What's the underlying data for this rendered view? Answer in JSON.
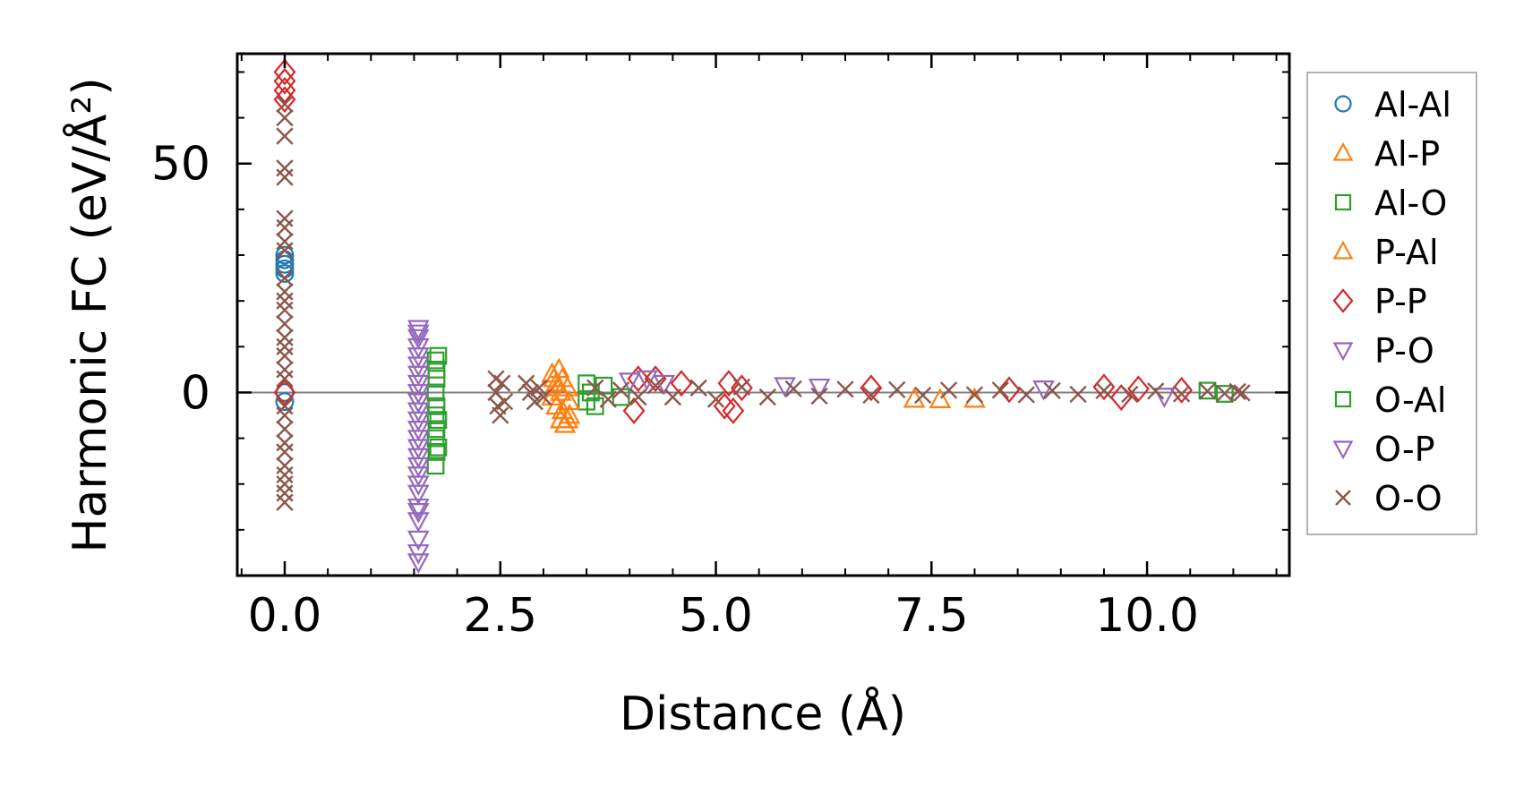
{
  "chart_data": {
    "type": "scatter",
    "title": "",
    "xlabel": "Distance (Å)",
    "ylabel": "Harmonic FC (eV/Å²)",
    "xlim": [
      -0.55,
      11.65
    ],
    "ylim": [
      -40,
      74
    ],
    "xticks": [
      0.0,
      2.5,
      5.0,
      7.5,
      10.0
    ],
    "xtick_labels": [
      "0.0",
      "2.5",
      "5.0",
      "7.5",
      "10.0"
    ],
    "yticks": [
      0,
      50
    ],
    "ytick_labels": [
      "0",
      "50"
    ],
    "zero_line": 0,
    "grid": false,
    "legend": "right, outside plot",
    "series": [
      {
        "name": "Al-Al",
        "marker": "circle",
        "color": "#1f77b4",
        "points": [
          [
            0,
            26
          ],
          [
            0,
            28
          ],
          [
            0,
            29
          ],
          [
            0,
            30
          ],
          [
            0,
            27
          ],
          [
            0,
            0
          ],
          [
            0,
            -2
          ]
        ]
      },
      {
        "name": "Al-P",
        "marker": "triangle-up",
        "color": "#ff7f0e",
        "points": [
          [
            3.1,
            4
          ],
          [
            3.12,
            3
          ],
          [
            3.15,
            2
          ],
          [
            3.18,
            1
          ],
          [
            3.1,
            -1
          ],
          [
            3.15,
            -3
          ],
          [
            3.2,
            -6
          ],
          [
            3.25,
            -7
          ],
          [
            3.3,
            -5
          ],
          [
            3.2,
            0
          ],
          [
            7.3,
            -1.5
          ],
          [
            7.6,
            -1.6
          ],
          [
            8.0,
            -1.5
          ]
        ]
      },
      {
        "name": "Al-O",
        "marker": "square",
        "color": "#2ca02c",
        "points": [
          [
            1.75,
            7
          ],
          [
            1.76,
            5
          ],
          [
            1.76,
            3
          ],
          [
            1.75,
            0
          ],
          [
            1.76,
            -3
          ],
          [
            1.75,
            -5
          ],
          [
            1.76,
            -8
          ],
          [
            1.75,
            -10
          ],
          [
            1.76,
            -13
          ],
          [
            1.75,
            -16
          ],
          [
            3.5,
            2
          ],
          [
            3.55,
            0
          ],
          [
            3.5,
            -2
          ],
          [
            3.6,
            -3
          ]
        ]
      },
      {
        "name": "P-Al",
        "marker": "triangle-up",
        "color": "#ff7f0e",
        "points": [
          [
            3.18,
            5
          ],
          [
            3.22,
            3
          ],
          [
            3.28,
            1
          ],
          [
            3.3,
            -2
          ],
          [
            3.22,
            -4
          ],
          [
            3.28,
            -6
          ]
        ]
      },
      {
        "name": "P-P",
        "marker": "diamond",
        "color": "#d62728",
        "points": [
          [
            0,
            70
          ],
          [
            0,
            68
          ],
          [
            0,
            66
          ],
          [
            0,
            64
          ],
          [
            0,
            0
          ],
          [
            4.1,
            3
          ],
          [
            4.05,
            -4
          ],
          [
            4.3,
            3
          ],
          [
            4.6,
            2
          ],
          [
            5.1,
            -3
          ],
          [
            5.15,
            2
          ],
          [
            5.2,
            -4
          ],
          [
            5.3,
            1
          ],
          [
            6.8,
            1
          ],
          [
            8.4,
            0.6
          ],
          [
            9.5,
            1.2
          ],
          [
            9.7,
            -1.1
          ],
          [
            9.9,
            0.8
          ],
          [
            10.4,
            0.5
          ]
        ]
      },
      {
        "name": "P-O",
        "marker": "triangle-down",
        "color": "#9467bd",
        "points": [
          [
            1.55,
            14
          ],
          [
            1.55,
            12
          ],
          [
            1.55,
            10
          ],
          [
            1.55,
            8
          ],
          [
            1.55,
            6
          ],
          [
            1.55,
            4
          ],
          [
            1.55,
            2
          ],
          [
            1.55,
            0
          ],
          [
            1.55,
            -2
          ],
          [
            1.55,
            -4
          ],
          [
            1.55,
            -6
          ],
          [
            1.55,
            -8
          ],
          [
            1.55,
            -10
          ],
          [
            1.55,
            -12
          ],
          [
            1.55,
            -14
          ],
          [
            1.55,
            -16
          ],
          [
            1.55,
            -20
          ],
          [
            1.55,
            -22
          ],
          [
            1.55,
            -25
          ],
          [
            1.55,
            -28
          ],
          [
            1.55,
            -32
          ],
          [
            1.55,
            -35
          ],
          [
            1.55,
            -37
          ],
          [
            4.0,
            2.5
          ],
          [
            4.4,
            2
          ],
          [
            5.8,
            1.5
          ],
          [
            10.2,
            -0.8
          ]
        ]
      },
      {
        "name": "O-Al",
        "marker": "square",
        "color": "#2ca02c",
        "points": [
          [
            1.78,
            8
          ],
          [
            1.78,
            -6
          ],
          [
            1.78,
            -12
          ],
          [
            3.7,
            1.5
          ],
          [
            3.9,
            -1
          ],
          [
            10.7,
            0.4
          ],
          [
            10.9,
            -0.3
          ]
        ]
      },
      {
        "name": "O-P",
        "marker": "triangle-down",
        "color": "#9467bd",
        "points": [
          [
            1.55,
            13
          ],
          [
            1.55,
            -18
          ],
          [
            1.55,
            -26
          ],
          [
            4.2,
            3
          ],
          [
            6.2,
            1.2
          ],
          [
            8.8,
            0.8
          ]
        ]
      },
      {
        "name": "O-O",
        "marker": "x",
        "color": "#8c564b",
        "points": [
          [
            0,
            63
          ],
          [
            0,
            60
          ],
          [
            0,
            56
          ],
          [
            0,
            49
          ],
          [
            0,
            47
          ],
          [
            0,
            38
          ],
          [
            0,
            36
          ],
          [
            0,
            33
          ],
          [
            0,
            31
          ],
          [
            0,
            25
          ],
          [
            0,
            22
          ],
          [
            0,
            20
          ],
          [
            0,
            18
          ],
          [
            0,
            15
          ],
          [
            0,
            12
          ],
          [
            0,
            10
          ],
          [
            0,
            8
          ],
          [
            0,
            5
          ],
          [
            0,
            3
          ],
          [
            0,
            -3
          ],
          [
            0,
            -5
          ],
          [
            0,
            -8
          ],
          [
            0,
            -11
          ],
          [
            0,
            -13
          ],
          [
            0,
            -16
          ],
          [
            0,
            -18
          ],
          [
            0,
            -20
          ],
          [
            0,
            -22
          ],
          [
            0,
            -24
          ],
          [
            2.45,
            3
          ],
          [
            2.45,
            0
          ],
          [
            2.47,
            -3
          ],
          [
            2.5,
            -5
          ],
          [
            2.52,
            2
          ],
          [
            2.55,
            -2
          ],
          [
            2.8,
            2
          ],
          [
            2.85,
            0
          ],
          [
            2.9,
            -2
          ],
          [
            2.95,
            1
          ],
          [
            3.0,
            -1
          ],
          [
            3.6,
            1
          ],
          [
            3.75,
            -1.5
          ],
          [
            3.9,
            0.5
          ],
          [
            4.1,
            -1
          ],
          [
            4.3,
            1.5
          ],
          [
            4.5,
            -1
          ],
          [
            4.8,
            1
          ],
          [
            5.0,
            -1.5
          ],
          [
            5.3,
            1.2
          ],
          [
            5.6,
            -1
          ],
          [
            5.9,
            0.8
          ],
          [
            6.2,
            -0.8
          ],
          [
            6.5,
            0.7
          ],
          [
            6.8,
            -0.6
          ],
          [
            7.1,
            0.6
          ],
          [
            7.4,
            -0.6
          ],
          [
            7.7,
            0.5
          ],
          [
            8.0,
            -0.5
          ],
          [
            8.3,
            0.5
          ],
          [
            8.6,
            -0.5
          ],
          [
            8.9,
            0.4
          ],
          [
            9.2,
            -0.4
          ],
          [
            9.5,
            0.4
          ],
          [
            9.8,
            -0.4
          ],
          [
            10.1,
            0.3
          ],
          [
            10.4,
            -0.3
          ],
          [
            10.7,
            0.3
          ],
          [
            10.9,
            -0.2
          ],
          [
            11.05,
            0.2
          ],
          [
            11.1,
            -0.1
          ]
        ]
      }
    ]
  }
}
